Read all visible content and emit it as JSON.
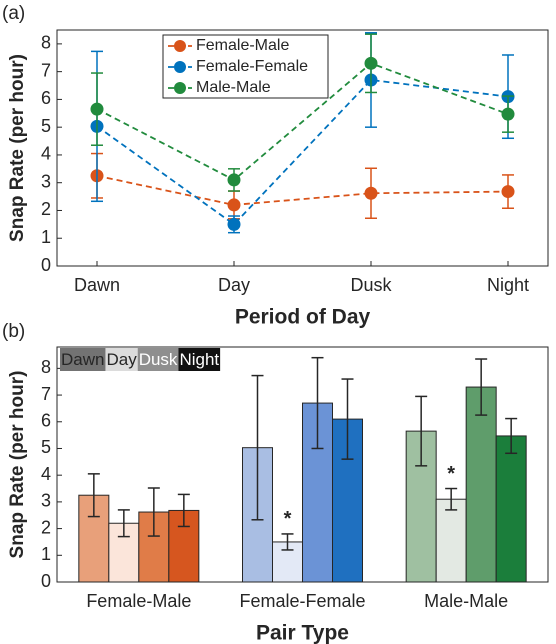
{
  "chart_data": [
    {
      "type": "line",
      "panel_label": "(a)",
      "x_label": "Period of Day",
      "y_label": "Snap Rate (per hour)",
      "categories": [
        "Dawn",
        "Day",
        "Dusk",
        "Night"
      ],
      "ylim": [
        0,
        8.5
      ],
      "yticks": [
        0,
        1,
        2,
        3,
        4,
        5,
        6,
        7,
        8
      ],
      "legend": "top-left",
      "series": [
        {
          "name": "Female-Male",
          "color": "#d95319",
          "values": [
            3.25,
            2.2,
            2.62,
            2.68
          ],
          "errors": [
            0.8,
            0.5,
            0.9,
            0.6
          ]
        },
        {
          "name": "Female-Female",
          "color": "#0072bd",
          "values": [
            5.03,
            1.5,
            6.7,
            6.1
          ],
          "errors": [
            2.7,
            0.3,
            1.7,
            1.5
          ]
        },
        {
          "name": "Male-Male",
          "color": "#218b3d",
          "values": [
            5.65,
            3.1,
            7.3,
            5.47
          ],
          "errors": [
            1.3,
            0.4,
            1.05,
            0.65
          ]
        }
      ]
    },
    {
      "type": "bar",
      "panel_label": "(b)",
      "x_label": "Pair Type",
      "y_label": "Snap Rate (per hour)",
      "categories": [
        "Female-Male",
        "Female-Female",
        "Male-Male"
      ],
      "ylim": [
        0,
        8.8
      ],
      "yticks": [
        0,
        1,
        2,
        3,
        4,
        5,
        6,
        7,
        8
      ],
      "legend": "top-left",
      "series": [
        {
          "name": "Dawn",
          "color": "#737373",
          "colors": [
            "#e8a07a",
            "#a9bee3",
            "#9fc0a1"
          ],
          "values": [
            3.25,
            5.03,
            5.65
          ],
          "errors": [
            0.8,
            2.7,
            1.3
          ]
        },
        {
          "name": "Day",
          "color": "#dcdcdc",
          "colors": [
            "#fbe5da",
            "#e3e9f6",
            "#e3e9e3"
          ],
          "values": [
            2.2,
            1.5,
            3.1
          ],
          "errors": [
            0.5,
            0.3,
            0.4
          ]
        },
        {
          "name": "Dusk",
          "color": "#8f8f8f",
          "colors": [
            "#e07c48",
            "#6b93d6",
            "#5f9d6b"
          ],
          "values": [
            2.62,
            6.7,
            7.3
          ],
          "errors": [
            0.9,
            1.7,
            1.05
          ]
        },
        {
          "name": "Night",
          "color": "#111111",
          "colors": [
            "#d6561f",
            "#1f70c0",
            "#1b7e3b"
          ],
          "values": [
            2.68,
            6.1,
            5.47
          ],
          "errors": [
            0.6,
            1.5,
            0.65
          ]
        }
      ],
      "annotations": [
        {
          "label": "*",
          "category": "Female-Female",
          "series": "Day"
        },
        {
          "label": "*",
          "category": "Male-Male",
          "series": "Day"
        }
      ]
    }
  ]
}
